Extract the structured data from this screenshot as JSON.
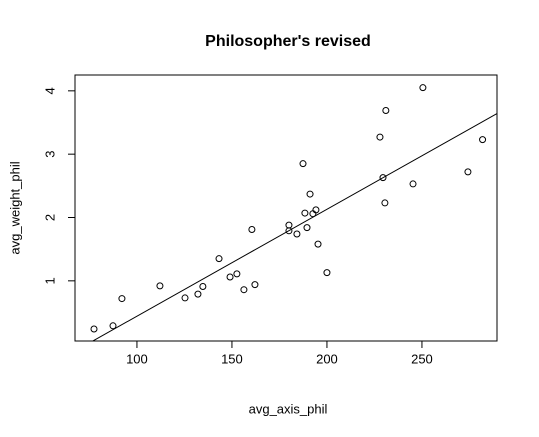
{
  "chart_data": {
    "type": "scatter",
    "title": "Philosopher's revised",
    "xlabel": "avg_axis_phil",
    "ylabel": "avg_weight_phil",
    "x": [
      77.4,
      87.4,
      92.1,
      112.1,
      125.3,
      132.1,
      134.7,
      143.2,
      149,
      152.6,
      156.3,
      160.5,
      162.1,
      180,
      180,
      184.2,
      187.4,
      188.4,
      189.5,
      191.1,
      192.6,
      194.2,
      195.3,
      200,
      227.9,
      229.5,
      230.5,
      231,
      245.3,
      250.5,
      274.2,
      281.9
    ],
    "values": [
      0.24,
      0.29,
      0.72,
      0.92,
      0.73,
      0.79,
      0.91,
      1.35,
      1.06,
      1.11,
      0.86,
      1.81,
      0.94,
      1.79,
      1.88,
      1.74,
      2.85,
      2.07,
      1.84,
      2.37,
      2.06,
      2.12,
      1.58,
      1.13,
      3.27,
      2.63,
      2.23,
      3.69,
      2.53,
      4.05,
      2.72,
      3.23
    ],
    "regression": {
      "intercept": -1.246,
      "slope": 0.01688
    },
    "color": "#000000",
    "xlim": [
      67.4,
      289.5
    ],
    "xticks": [
      100,
      150,
      200,
      250
    ],
    "ylim": [
      0.05,
      4.25
    ],
    "yticks": [
      1,
      2,
      3,
      4
    ]
  }
}
